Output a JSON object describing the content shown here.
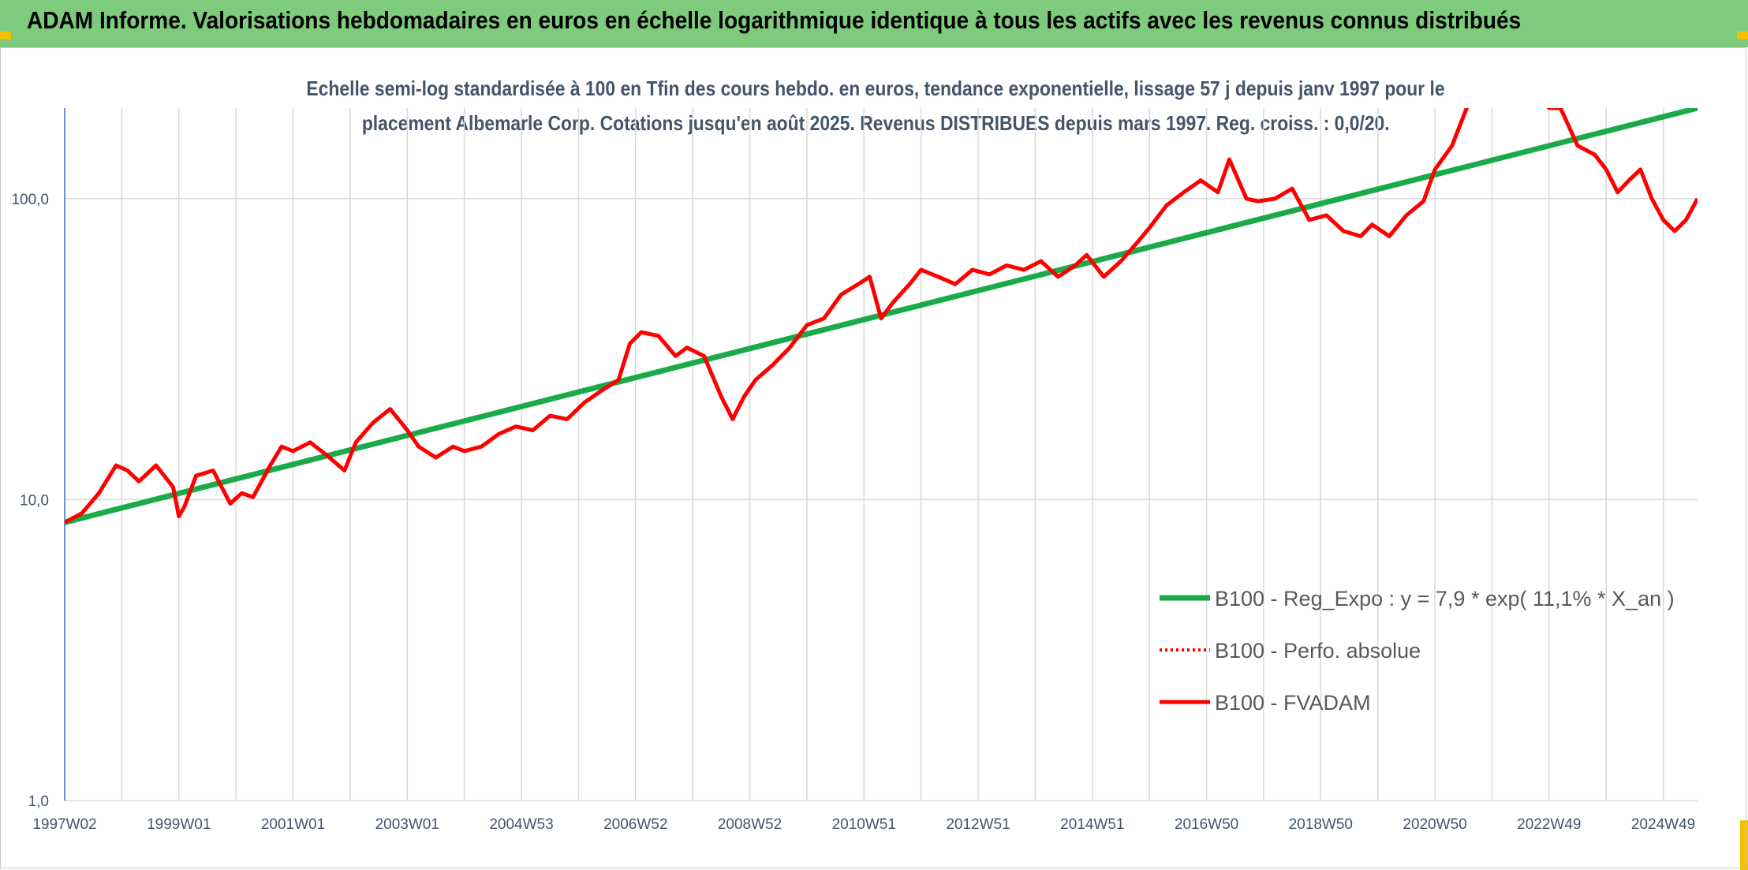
{
  "header": {
    "title": "ADAM Informe. Valorisations hebdomadaires en euros en échelle logarithmique identique à tous les actifs avec les revenus connus distribués"
  },
  "colors": {
    "header_bg": "#7ecb7e",
    "accent": "#f2c200",
    "trend": "#1aaa4a",
    "perf": "#ff0000",
    "fvadam": "#ff0000",
    "grid": "#d9d9d9",
    "text": "#44546a"
  },
  "chart_data": {
    "type": "line",
    "title_line1": "Echelle semi-log standardisée à 100 en Tfin des cours hebdo. en euros, tendance exponentielle, lissage 57 j depuis janv 1997 pour le",
    "title_line2": "placement Albemarle Corp. Cotations jusqu'en août 2025. Revenus DISTRIBUES depuis mars 1997. Reg. croiss. : 0,0/20.",
    "y_scale": "log",
    "ylim": [
      1,
      200
    ],
    "xlim": [
      1997.0,
      2025.6
    ],
    "y_ticks": [
      1,
      10,
      100
    ],
    "y_tick_labels": [
      "1,0",
      "10,0",
      "100,0"
    ],
    "x_tick_labels": [
      "1997W02",
      "1999W01",
      "2001W01",
      "2003W01",
      "2004W53",
      "2006W52",
      "2008W52",
      "2010W51",
      "2012W51",
      "2014W51",
      "2016W50",
      "2018W50",
      "2020W50",
      "2022W49",
      "2024W49"
    ],
    "x_tick_positions": [
      1997.0,
      1999.0,
      2001.0,
      2003.0,
      2005.0,
      2007.0,
      2009.0,
      2011.0,
      2013.0,
      2015.0,
      2017.0,
      2019.0,
      2021.0,
      2023.0,
      2025.0
    ],
    "grid": true,
    "legend_position": "right",
    "series": [
      {
        "name": "B100 - Reg_Expo : y = 7,9 * exp( 11,1% *  X_an )",
        "style": "solid-green",
        "x": [
          1997.0,
          2025.6
        ],
        "y": [
          8.4,
          200
        ]
      },
      {
        "name": "B100 - Perfo. absolue",
        "style": "dotted-red",
        "x": [],
        "y": []
      },
      {
        "name": "B100 - FVADAM",
        "style": "solid-red",
        "x": [
          1997.0,
          1997.3,
          1997.6,
          1997.9,
          1998.1,
          1998.3,
          1998.6,
          1998.9,
          1999.0,
          1999.1,
          1999.3,
          1999.6,
          1999.9,
          2000.1,
          2000.3,
          2000.6,
          2000.8,
          2001.0,
          2001.3,
          2001.6,
          2001.9,
          2002.1,
          2002.4,
          2002.7,
          2003.0,
          2003.2,
          2003.5,
          2003.8,
          2004.0,
          2004.3,
          2004.6,
          2004.9,
          2005.2,
          2005.5,
          2005.8,
          2006.1,
          2006.4,
          2006.7,
          2006.9,
          2007.1,
          2007.4,
          2007.7,
          2007.9,
          2008.2,
          2008.5,
          2008.7,
          2008.9,
          2009.1,
          2009.4,
          2009.7,
          2010.0,
          2010.3,
          2010.6,
          2010.9,
          2011.1,
          2011.3,
          2011.5,
          2011.8,
          2012.0,
          2012.3,
          2012.6,
          2012.9,
          2013.2,
          2013.5,
          2013.8,
          2014.1,
          2014.4,
          2014.7,
          2014.9,
          2015.2,
          2015.5,
          2015.8,
          2016.0,
          2016.3,
          2016.6,
          2016.9,
          2017.2,
          2017.4,
          2017.7,
          2017.9,
          2018.2,
          2018.5,
          2018.8,
          2019.1,
          2019.4,
          2019.7,
          2019.9,
          2020.2,
          2020.5,
          2020.8,
          2021.0,
          2021.3,
          2021.6,
          2021.9,
          2022.2,
          2022.5,
          2022.8,
          2023.0,
          2023.2,
          2023.5,
          2023.8,
          2024.0,
          2024.2,
          2024.4,
          2024.6,
          2024.8,
          2025.0,
          2025.2,
          2025.4,
          2025.6
        ],
        "y": [
          8.4,
          9.0,
          10.5,
          13.0,
          12.5,
          11.5,
          13.0,
          11.0,
          8.8,
          9.5,
          12.0,
          12.5,
          9.7,
          10.5,
          10.2,
          13.0,
          15.0,
          14.5,
          15.5,
          14.0,
          12.5,
          15.5,
          18.0,
          20.0,
          17.0,
          15.0,
          13.8,
          15.0,
          14.5,
          15.0,
          16.5,
          17.5,
          17.0,
          19.0,
          18.5,
          21.0,
          23.0,
          25.0,
          33.0,
          36.0,
          35.0,
          30.0,
          32.0,
          30.0,
          22.0,
          18.5,
          22.0,
          25.0,
          28.0,
          32.0,
          38.0,
          40.0,
          48.0,
          52.0,
          55.0,
          40.0,
          45.0,
          52.0,
          58.0,
          55.0,
          52.0,
          58.0,
          56.0,
          60.0,
          58.0,
          62.0,
          55.0,
          60.0,
          65.0,
          55.0,
          62.0,
          72.0,
          80.0,
          95.0,
          105.0,
          115.0,
          105.0,
          135.0,
          100.0,
          98.0,
          100.0,
          108.0,
          85.0,
          88.0,
          78.0,
          75.0,
          82.0,
          75.0,
          88.0,
          98.0,
          125.0,
          150.0,
          210.0,
          250.0,
          230.0,
          210.0,
          240.0,
          200.0,
          200.0,
          150.0,
          140.0,
          125.0,
          105.0,
          115.0,
          125.0,
          100.0,
          85.0,
          78.0,
          85.0,
          100.0
        ]
      }
    ]
  }
}
